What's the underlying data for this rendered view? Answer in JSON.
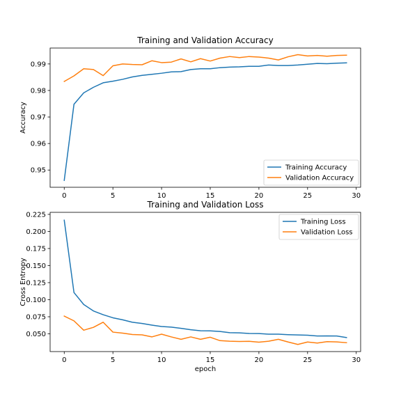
{
  "chart_data": [
    {
      "type": "line",
      "title": "Training and Validation Accuracy",
      "xlabel": "",
      "ylabel": "Accuracy",
      "xlim": [
        -1.45,
        30.45
      ],
      "ylim": [
        0.9435,
        0.996
      ],
      "xticks": [
        0,
        5,
        10,
        15,
        20,
        25,
        30
      ],
      "yticks": [
        0.95,
        0.96,
        0.97,
        0.98,
        0.99
      ],
      "ytick_labels": [
        "0.95",
        "0.96",
        "0.97",
        "0.98",
        "0.99"
      ],
      "legend_position": "lower-right",
      "grid": false,
      "x": [
        0,
        1,
        2,
        3,
        4,
        5,
        6,
        7,
        8,
        9,
        10,
        11,
        12,
        13,
        14,
        15,
        16,
        17,
        18,
        19,
        20,
        21,
        22,
        23,
        24,
        25,
        26,
        27,
        28,
        29
      ],
      "series": [
        {
          "name": "Training Accuracy",
          "color": "#1f77b4",
          "values": [
            0.9461,
            0.9748,
            0.9791,
            0.9812,
            0.9829,
            0.9835,
            0.9842,
            0.9851,
            0.9857,
            0.9861,
            0.9865,
            0.987,
            0.9871,
            0.9879,
            0.9882,
            0.9882,
            0.9886,
            0.9888,
            0.9889,
            0.9891,
            0.9891,
            0.9896,
            0.9894,
            0.9894,
            0.9896,
            0.9899,
            0.9902,
            0.9901,
            0.9903,
            0.9904
          ]
        },
        {
          "name": "Validation Accuracy",
          "color": "#ff7f0e",
          "values": [
            0.9834,
            0.9855,
            0.9882,
            0.9879,
            0.9856,
            0.9893,
            0.99,
            0.9898,
            0.9897,
            0.9912,
            0.9905,
            0.9907,
            0.9919,
            0.9908,
            0.992,
            0.9911,
            0.9922,
            0.9928,
            0.9924,
            0.9928,
            0.9926,
            0.9922,
            0.9915,
            0.9927,
            0.9935,
            0.993,
            0.9932,
            0.9929,
            0.9932,
            0.9933
          ]
        }
      ]
    },
    {
      "type": "line",
      "title": "Training and Validation Loss",
      "xlabel": "epoch",
      "ylabel": "Cross Entropy",
      "xlim": [
        -1.45,
        30.45
      ],
      "ylim": [
        0.024,
        0.228
      ],
      "xticks": [
        0,
        5,
        10,
        15,
        20,
        25,
        30
      ],
      "yticks": [
        0.05,
        0.075,
        0.1,
        0.125,
        0.15,
        0.175,
        0.2,
        0.225
      ],
      "ytick_labels": [
        "0.050",
        "0.075",
        "0.100",
        "0.125",
        "0.150",
        "0.175",
        "0.200",
        "0.225"
      ],
      "legend_position": "upper-right",
      "grid": false,
      "x": [
        0,
        1,
        2,
        3,
        4,
        5,
        6,
        7,
        8,
        9,
        10,
        11,
        12,
        13,
        14,
        15,
        16,
        17,
        18,
        19,
        20,
        21,
        22,
        23,
        24,
        25,
        26,
        27,
        28,
        29
      ],
      "series": [
        {
          "name": "Training Loss",
          "color": "#1f77b4",
          "values": [
            0.2165,
            0.1105,
            0.093,
            0.0835,
            0.078,
            0.0735,
            0.0705,
            0.067,
            0.0652,
            0.0628,
            0.0607,
            0.0598,
            0.058,
            0.056,
            0.0545,
            0.0543,
            0.0535,
            0.0517,
            0.0514,
            0.0505,
            0.0504,
            0.0495,
            0.0495,
            0.0488,
            0.0484,
            0.048,
            0.0468,
            0.047,
            0.0468,
            0.0445
          ]
        },
        {
          "name": "Validation Loss",
          "color": "#ff7f0e",
          "values": [
            0.076,
            0.069,
            0.0553,
            0.0595,
            0.067,
            0.0525,
            0.051,
            0.049,
            0.0485,
            0.0455,
            0.0495,
            0.0455,
            0.042,
            0.0455,
            0.042,
            0.045,
            0.04,
            0.0392,
            0.0388,
            0.039,
            0.0378,
            0.0392,
            0.042,
            0.038,
            0.0345,
            0.038,
            0.0365,
            0.0385,
            0.0382,
            0.037
          ]
        }
      ]
    }
  ]
}
